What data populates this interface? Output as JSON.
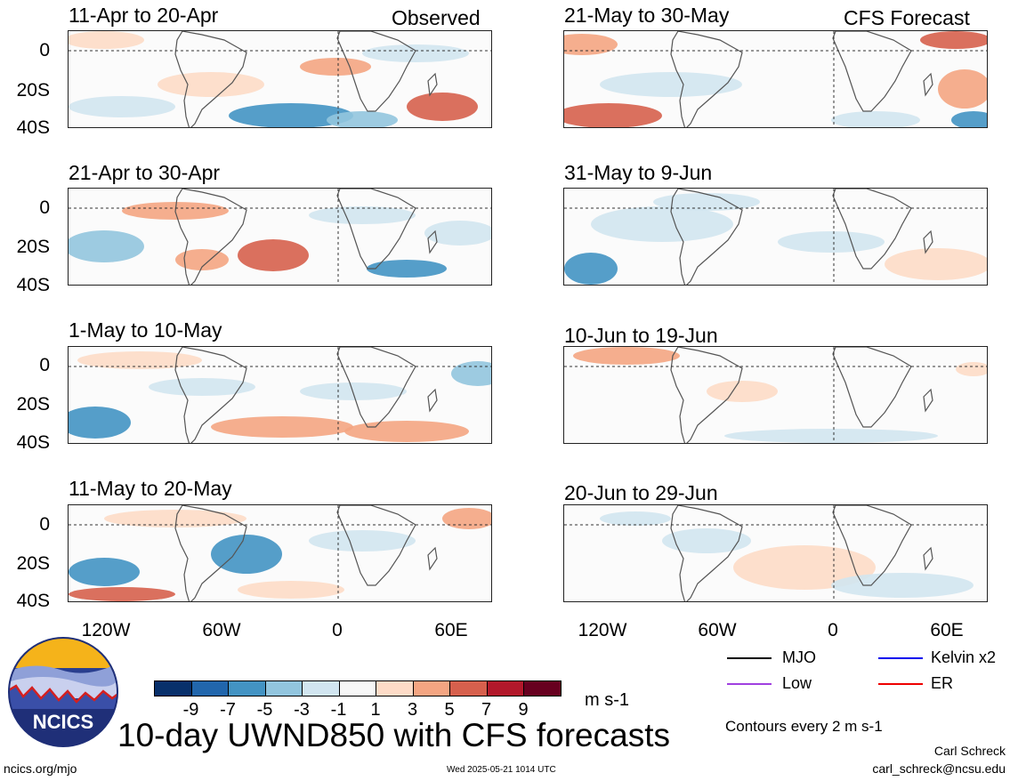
{
  "headers": {
    "left": "Observed",
    "right": "CFS Forecast"
  },
  "panels": {
    "left": [
      "11-Apr to 20-Apr",
      "21-Apr to 30-Apr",
      "1-May to 10-May",
      "11-May to 20-May"
    ],
    "right": [
      "21-May to 30-May",
      "31-May to 9-Jun",
      "10-Jun to 19-Jun",
      "20-Jun to 29-Jun"
    ]
  },
  "axes": {
    "y_ticks": [
      "0",
      "20S",
      "40S"
    ],
    "x_ticks": [
      "120W",
      "60W",
      "0",
      "60E"
    ]
  },
  "colorbar": {
    "colors": [
      "#08306b",
      "#2166ac",
      "#4393c3",
      "#92c5de",
      "#d1e5f0",
      "#f7f7f7",
      "#fddbc7",
      "#f4a582",
      "#d6604d",
      "#b2182b",
      "#67001f"
    ],
    "labels": [
      "-9",
      "-7",
      "-5",
      "-3",
      "-1",
      "1",
      "3",
      "5",
      "7",
      "9"
    ],
    "units": "m s-1"
  },
  "legend": {
    "items": [
      {
        "label": "MJO",
        "color": "#000000"
      },
      {
        "label": "Kelvin x2",
        "color": "#0000ee"
      },
      {
        "label": "Low",
        "color": "#a040e0"
      },
      {
        "label": "ER",
        "color": "#ee0000"
      }
    ],
    "contours_note": "Contours every 2 m s-1"
  },
  "logo_text": "NCICS",
  "main_title": "10-day UWND850 with CFS forecasts",
  "footer": {
    "url": "ncics.org/mjo",
    "timestamp": "Wed 2025-05-21 1014 UTC",
    "author": "Carl Schreck",
    "email": "carl_schreck@ncsu.edu"
  }
}
